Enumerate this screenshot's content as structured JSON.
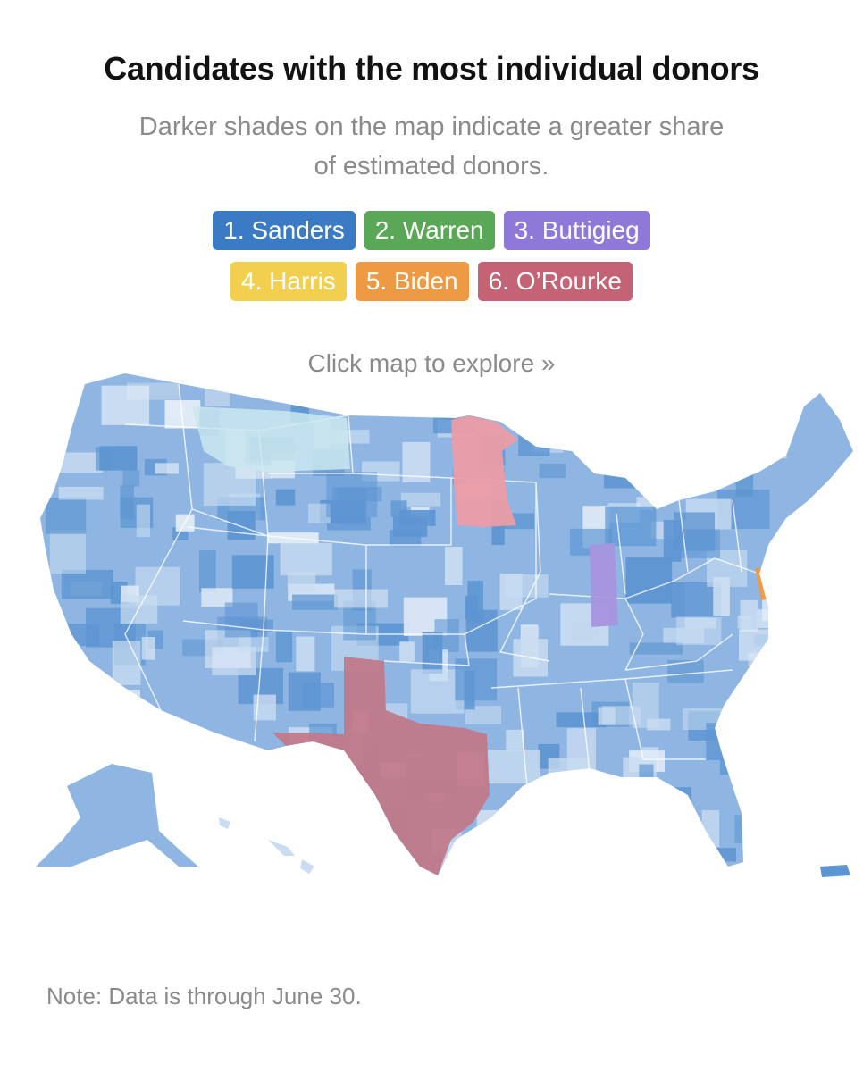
{
  "title": "Candidates with the most individual donors",
  "subtitle": "Darker shades on the map indicate a greater share of estimated donors.",
  "legend": [
    {
      "label": "1. Sanders",
      "color": "#3b7bc4"
    },
    {
      "label": "2. Warren",
      "color": "#5aa857"
    },
    {
      "label": "3. Buttigieg",
      "color": "#8e79d8"
    },
    {
      "label": "4. Harris",
      "color": "#f2cf4e"
    },
    {
      "label": "5. Biden",
      "color": "#ee9a45"
    },
    {
      "label": "6. O’Rourke",
      "color": "#c46375"
    }
  ],
  "hint": "Click map to explore »",
  "note": "Note: Data is through June 30.",
  "map": {
    "base_color": "#8fb6e2",
    "dark_color": "#5d95d2",
    "light_color": "#c9dcf1",
    "regions": [
      {
        "name": "Texas",
        "leader": "6. O’Rourke",
        "color": "#c17a8a"
      },
      {
        "name": "Minnesota",
        "leader": "6. O’Rourke",
        "color": "#ec9ca6"
      },
      {
        "name": "Indiana",
        "leader": "3. Buttigieg",
        "color": "#a895df"
      },
      {
        "name": "Montana",
        "leader": "1. Sanders",
        "color": "#cbe8ef"
      },
      {
        "name": "Delaware",
        "leader": "5. Biden",
        "color": "#ee9a45"
      }
    ]
  }
}
